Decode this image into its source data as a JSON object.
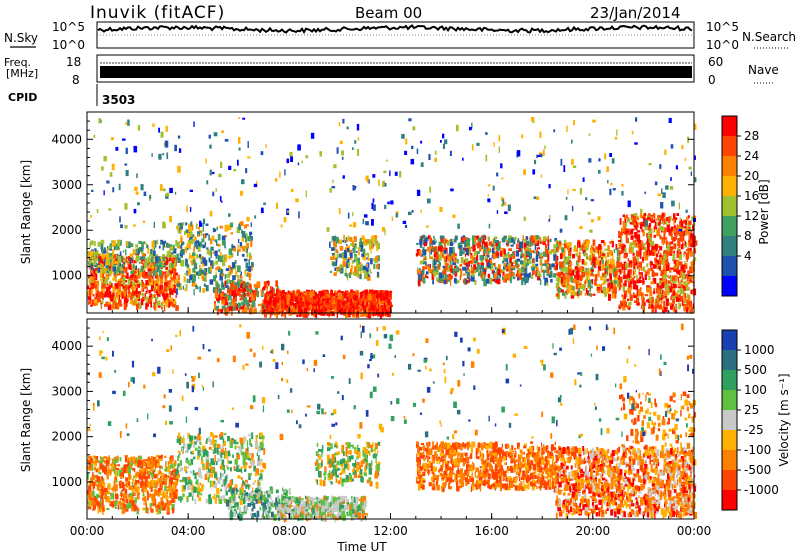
{
  "header": {
    "station": "Inuvik (fitACF)",
    "beam": "Beam 00",
    "date": "23/Jan/2014"
  },
  "top_panels": {
    "noise": {
      "left_label": "N.Sky",
      "right_label": "N.Search",
      "ticks_left": [
        "10^5",
        "10^0"
      ],
      "ticks_right": [
        "10^5",
        "10^0"
      ]
    },
    "freq": {
      "left_label_1": "Freq.",
      "left_label_2": "[MHz]",
      "right_label": "Nave",
      "ticks_left": [
        "18",
        "8"
      ],
      "ticks_right": [
        "60",
        "0"
      ]
    },
    "cpid": {
      "label": "CPID",
      "value": "3503"
    }
  },
  "chart_data": [
    {
      "type": "heatmap",
      "name": "Power",
      "ylabel": "Slant Range [km]",
      "xlabel": "",
      "ylim": [
        180,
        4600
      ],
      "yticks": [
        "4000",
        "3000",
        "2000",
        "1000"
      ],
      "colorbar": {
        "label": "Power [dB]",
        "ticks": [
          "28",
          "24",
          "20",
          "16",
          "12",
          "8",
          "4"
        ],
        "colors": [
          "#ff0000",
          "#ff4400",
          "#ff8000",
          "#ffb000",
          "#a0c030",
          "#40a060",
          "#308080",
          "#2050b0",
          "#0000ff"
        ]
      }
    },
    {
      "type": "heatmap",
      "name": "Velocity",
      "ylabel": "Slant Range [km]",
      "xlabel": "Time UT",
      "ylim": [
        180,
        4600
      ],
      "yticks": [
        "4000",
        "3000",
        "2000",
        "1000"
      ],
      "xticks": [
        "00:00",
        "04:00",
        "08:00",
        "12:00",
        "16:00",
        "20:00",
        "00:00"
      ],
      "colorbar": {
        "label": "Velocity [m s⁻¹]",
        "ticks": [
          "1000",
          "500",
          "100",
          "25",
          "-25",
          "-100",
          "-500",
          "-1000"
        ],
        "colors": [
          "#1a3fb0",
          "#2a7080",
          "#30a060",
          "#60c040",
          "#c8c8c8",
          "#ffb000",
          "#ff8000",
          "#ff4400",
          "#ff0000"
        ]
      }
    }
  ],
  "colors": {
    "red": "#ff0000",
    "orange": "#ff8000",
    "green": "#40a060",
    "blue": "#2050b0",
    "grey": "#c8c8c8"
  }
}
